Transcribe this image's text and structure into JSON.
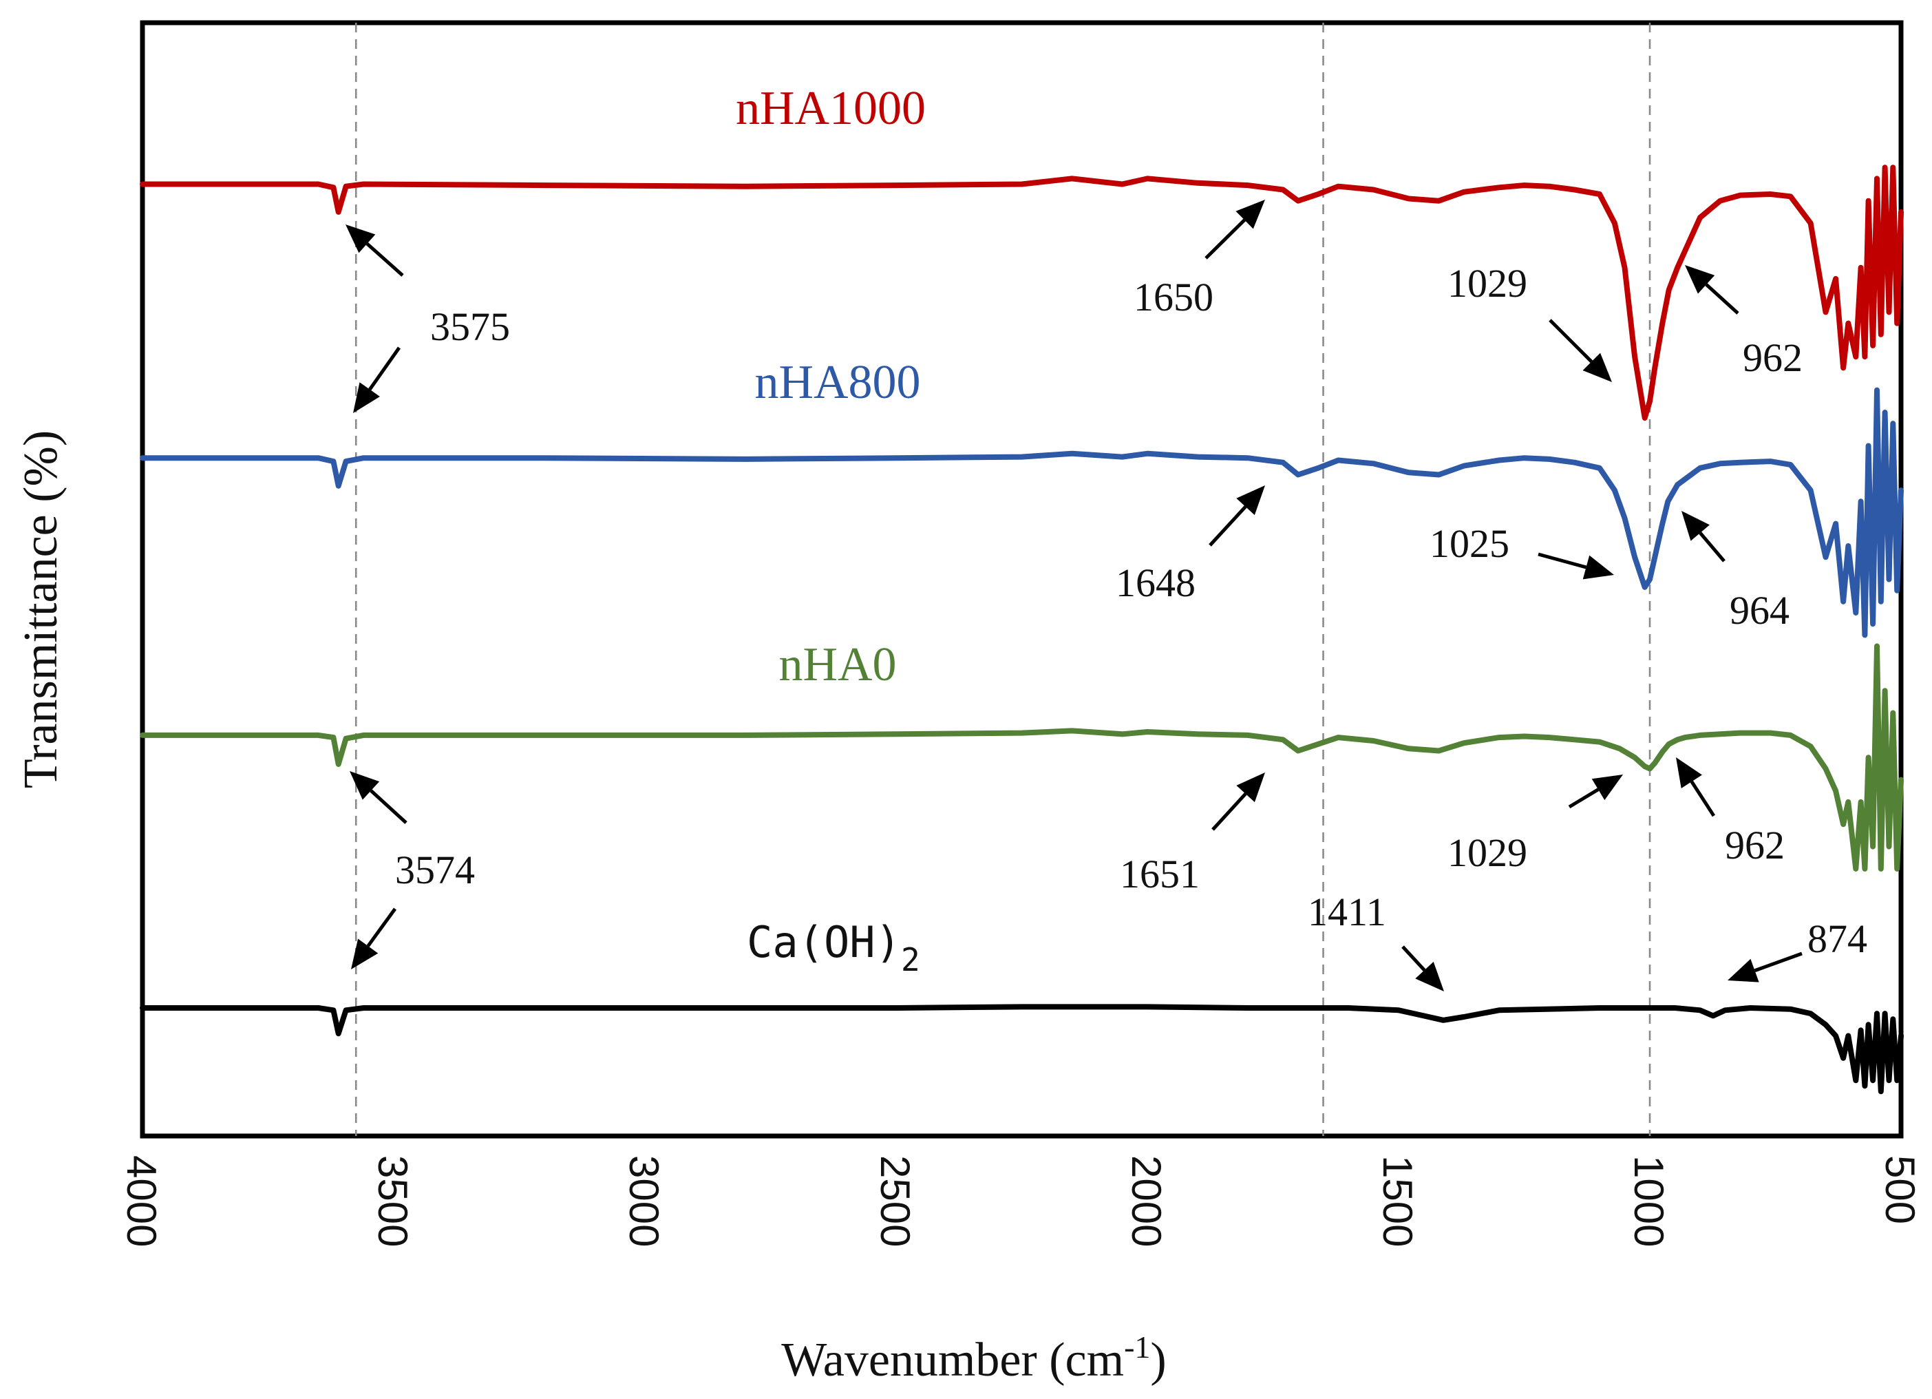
{
  "chart_data": {
    "type": "line",
    "title": "",
    "xlabel": "Wavenumber (cm",
    "xlabel_sup": "-1",
    "xlabel_close": ")",
    "ylabel": "Transmittance (%)",
    "xlim": [
      4000,
      500
    ],
    "x_reversed": true,
    "xticks": [
      4000,
      3500,
      3000,
      2500,
      2000,
      1500,
      1000,
      500
    ],
    "ylim": [
      0,
      100
    ],
    "grid": false,
    "y_tick_labels": false,
    "reference_lines": [
      3575,
      1650,
      1000
    ],
    "series": [
      {
        "name": "nHA1000",
        "color": "#c00000",
        "baseline": 85.5,
        "points": [
          [
            4000,
            85.5
          ],
          [
            3650,
            85.5
          ],
          [
            3620,
            85.2
          ],
          [
            3610,
            83.0
          ],
          [
            3595,
            85.3
          ],
          [
            3560,
            85.5
          ],
          [
            3200,
            85.4
          ],
          [
            2800,
            85.3
          ],
          [
            2500,
            85.4
          ],
          [
            2250,
            85.5
          ],
          [
            2150,
            86.0
          ],
          [
            2050,
            85.5
          ],
          [
            2000,
            86.0
          ],
          [
            1900,
            85.6
          ],
          [
            1800,
            85.4
          ],
          [
            1730,
            85.0
          ],
          [
            1700,
            84.0
          ],
          [
            1660,
            84.6
          ],
          [
            1620,
            85.3
          ],
          [
            1550,
            85.0
          ],
          [
            1480,
            84.2
          ],
          [
            1420,
            84.0
          ],
          [
            1370,
            84.8
          ],
          [
            1300,
            85.2
          ],
          [
            1250,
            85.4
          ],
          [
            1200,
            85.3
          ],
          [
            1150,
            85.0
          ],
          [
            1100,
            84.6
          ],
          [
            1070,
            82.0
          ],
          [
            1050,
            78.0
          ],
          [
            1030,
            70.0
          ],
          [
            1010,
            64.5
          ],
          [
            1000,
            66.0
          ],
          [
            990,
            69.0
          ],
          [
            975,
            73.0
          ],
          [
            962,
            76.0
          ],
          [
            945,
            78.0
          ],
          [
            930,
            79.5
          ],
          [
            900,
            82.5
          ],
          [
            860,
            84.0
          ],
          [
            820,
            84.5
          ],
          [
            760,
            84.6
          ],
          [
            720,
            84.4
          ],
          [
            680,
            82.0
          ],
          [
            650,
            74.0
          ],
          [
            630,
            77.0
          ],
          [
            615,
            69.0
          ],
          [
            605,
            73.0
          ],
          [
            590,
            70.0
          ],
          [
            580,
            78.0
          ],
          [
            572,
            70.0
          ],
          [
            565,
            84.0
          ],
          [
            556,
            71.0
          ],
          [
            548,
            86.0
          ],
          [
            540,
            72.0
          ],
          [
            532,
            87.0
          ],
          [
            524,
            74.0
          ],
          [
            516,
            87.0
          ],
          [
            508,
            73.0
          ],
          [
            500,
            83.0
          ]
        ],
        "peaks": [
          {
            "label": "3575",
            "x": 3575
          },
          {
            "label": "1650",
            "x": 1650
          },
          {
            "label": "1029",
            "x": 1029
          },
          {
            "label": "962",
            "x": 962
          }
        ]
      },
      {
        "name": "nHA800",
        "color": "#2e59a6",
        "baseline": 60.9,
        "points": [
          [
            4000,
            60.9
          ],
          [
            3650,
            60.9
          ],
          [
            3620,
            60.6
          ],
          [
            3610,
            58.4
          ],
          [
            3595,
            60.6
          ],
          [
            3560,
            60.9
          ],
          [
            3200,
            60.9
          ],
          [
            2800,
            60.8
          ],
          [
            2500,
            60.9
          ],
          [
            2250,
            61.0
          ],
          [
            2150,
            61.3
          ],
          [
            2050,
            61.0
          ],
          [
            2000,
            61.3
          ],
          [
            1900,
            61.0
          ],
          [
            1800,
            60.9
          ],
          [
            1730,
            60.5
          ],
          [
            1700,
            59.4
          ],
          [
            1660,
            60.0
          ],
          [
            1620,
            60.7
          ],
          [
            1550,
            60.4
          ],
          [
            1480,
            59.6
          ],
          [
            1420,
            59.4
          ],
          [
            1370,
            60.2
          ],
          [
            1300,
            60.7
          ],
          [
            1250,
            60.9
          ],
          [
            1200,
            60.8
          ],
          [
            1150,
            60.5
          ],
          [
            1100,
            60.0
          ],
          [
            1070,
            58.0
          ],
          [
            1050,
            55.5
          ],
          [
            1030,
            52.0
          ],
          [
            1010,
            49.3
          ],
          [
            1000,
            50.0
          ],
          [
            990,
            52.0
          ],
          [
            975,
            55.0
          ],
          [
            964,
            57.0
          ],
          [
            945,
            58.5
          ],
          [
            930,
            59.0
          ],
          [
            900,
            60.0
          ],
          [
            860,
            60.4
          ],
          [
            820,
            60.5
          ],
          [
            760,
            60.6
          ],
          [
            720,
            60.3
          ],
          [
            680,
            58.0
          ],
          [
            650,
            52.0
          ],
          [
            630,
            55.0
          ],
          [
            615,
            48.0
          ],
          [
            605,
            53.0
          ],
          [
            590,
            47.0
          ],
          [
            580,
            57.0
          ],
          [
            572,
            45.0
          ],
          [
            565,
            62.0
          ],
          [
            556,
            46.0
          ],
          [
            548,
            67.0
          ],
          [
            540,
            48.0
          ],
          [
            532,
            65.0
          ],
          [
            524,
            50.0
          ],
          [
            516,
            64.0
          ],
          [
            508,
            49.0
          ],
          [
            500,
            58.0
          ]
        ],
        "peaks": [
          {
            "label": "3575",
            "x": 3575
          },
          {
            "label": "1648",
            "x": 1648
          },
          {
            "label": "1025",
            "x": 1025
          },
          {
            "label": "964",
            "x": 964
          }
        ]
      },
      {
        "name": "nHA0",
        "color": "#538135",
        "baseline": 36.0,
        "points": [
          [
            4000,
            36.0
          ],
          [
            3650,
            36.0
          ],
          [
            3620,
            35.8
          ],
          [
            3610,
            33.4
          ],
          [
            3595,
            35.7
          ],
          [
            3560,
            36.0
          ],
          [
            3200,
            36.0
          ],
          [
            2800,
            36.0
          ],
          [
            2500,
            36.1
          ],
          [
            2250,
            36.2
          ],
          [
            2150,
            36.4
          ],
          [
            2050,
            36.1
          ],
          [
            2000,
            36.3
          ],
          [
            1900,
            36.1
          ],
          [
            1800,
            36.0
          ],
          [
            1730,
            35.6
          ],
          [
            1700,
            34.6
          ],
          [
            1660,
            35.2
          ],
          [
            1620,
            35.8
          ],
          [
            1550,
            35.5
          ],
          [
            1480,
            34.8
          ],
          [
            1420,
            34.6
          ],
          [
            1370,
            35.3
          ],
          [
            1300,
            35.8
          ],
          [
            1250,
            35.9
          ],
          [
            1200,
            35.8
          ],
          [
            1150,
            35.6
          ],
          [
            1100,
            35.4
          ],
          [
            1060,
            34.8
          ],
          [
            1030,
            34.0
          ],
          [
            1010,
            33.2
          ],
          [
            1000,
            33.0
          ],
          [
            990,
            33.5
          ],
          [
            975,
            34.5
          ],
          [
            962,
            35.2
          ],
          [
            945,
            35.6
          ],
          [
            930,
            35.8
          ],
          [
            900,
            36.0
          ],
          [
            860,
            36.1
          ],
          [
            820,
            36.2
          ],
          [
            760,
            36.2
          ],
          [
            720,
            36.0
          ],
          [
            680,
            35.0
          ],
          [
            650,
            33.0
          ],
          [
            630,
            31.0
          ],
          [
            615,
            28.0
          ],
          [
            605,
            30.0
          ],
          [
            590,
            24.0
          ],
          [
            580,
            30.0
          ],
          [
            572,
            24.0
          ],
          [
            565,
            34.0
          ],
          [
            556,
            26.0
          ],
          [
            548,
            44.0
          ],
          [
            540,
            24.0
          ],
          [
            532,
            40.0
          ],
          [
            524,
            26.0
          ],
          [
            516,
            38.0
          ],
          [
            508,
            24.0
          ],
          [
            500,
            32.0
          ]
        ],
        "peaks": [
          {
            "label": "3574",
            "x": 3574
          },
          {
            "label": "1651",
            "x": 1651
          },
          {
            "label": "1029",
            "x": 1029
          },
          {
            "label": "962",
            "x": 962
          }
        ]
      },
      {
        "name": "Ca(OH)",
        "name_subscript": "2",
        "color": "#000000",
        "baseline": 11.5,
        "points": [
          [
            4000,
            11.5
          ],
          [
            3650,
            11.5
          ],
          [
            3620,
            11.3
          ],
          [
            3610,
            9.2
          ],
          [
            3595,
            11.3
          ],
          [
            3560,
            11.5
          ],
          [
            3200,
            11.5
          ],
          [
            2800,
            11.5
          ],
          [
            2500,
            11.5
          ],
          [
            2250,
            11.6
          ],
          [
            2000,
            11.6
          ],
          [
            1800,
            11.5
          ],
          [
            1600,
            11.5
          ],
          [
            1500,
            11.3
          ],
          [
            1450,
            10.8
          ],
          [
            1411,
            10.4
          ],
          [
            1370,
            10.7
          ],
          [
            1300,
            11.3
          ],
          [
            1100,
            11.5
          ],
          [
            950,
            11.5
          ],
          [
            900,
            11.3
          ],
          [
            874,
            10.8
          ],
          [
            850,
            11.3
          ],
          [
            800,
            11.5
          ],
          [
            720,
            11.4
          ],
          [
            680,
            11.0
          ],
          [
            650,
            10.0
          ],
          [
            630,
            9.0
          ],
          [
            615,
            7.0
          ],
          [
            605,
            9.0
          ],
          [
            590,
            5.0
          ],
          [
            580,
            9.5
          ],
          [
            572,
            4.5
          ],
          [
            565,
            10.0
          ],
          [
            556,
            5.0
          ],
          [
            548,
            11.0
          ],
          [
            540,
            4.0
          ],
          [
            532,
            11.0
          ],
          [
            524,
            5.0
          ],
          [
            516,
            10.5
          ],
          [
            508,
            5.0
          ],
          [
            500,
            9.0
          ]
        ],
        "peaks": [
          {
            "label": "3574",
            "x": 3574
          },
          {
            "label": "1411",
            "x": 1411
          },
          {
            "label": "874",
            "x": 874
          }
        ]
      }
    ]
  }
}
